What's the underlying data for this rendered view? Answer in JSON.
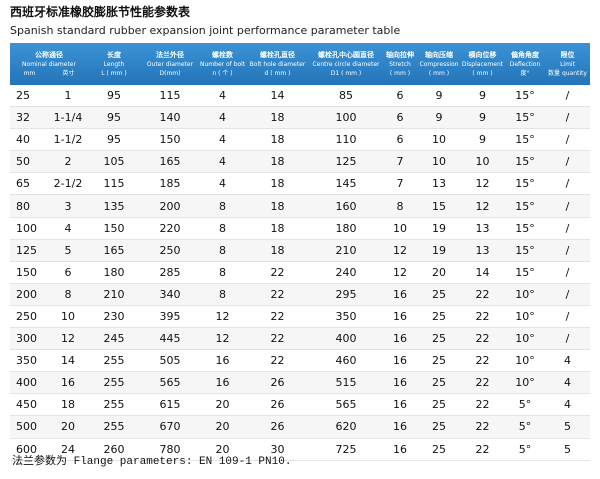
{
  "header": {
    "title": "西班牙标准橡胶膨胀节性能参数表",
    "subtitle": "Spanish standard rubber expansion joint performance parameter table"
  },
  "table": {
    "columns": [
      {
        "zh": "公称通径",
        "en": "Nominal diameter",
        "units": [
          "mm",
          "英寸"
        ]
      },
      {
        "zh": "长度",
        "en": "Length",
        "unit": "L ( mm )"
      },
      {
        "zh": "法兰外径",
        "en": "Outer diameter",
        "unit": "D(mm)"
      },
      {
        "zh": "螺栓数",
        "en": "Number of bolts",
        "unit": "n ( 个 )"
      },
      {
        "zh": "螺栓孔直径",
        "en": "Bolt hole diameter",
        "unit": "d ( mm )"
      },
      {
        "zh": "螺栓孔中心圆直径",
        "en": "Centre circle diameter",
        "unit": "D1 ( mm )"
      },
      {
        "zh": "轴向拉伸",
        "en": "Stretch",
        "unit": "( mm )"
      },
      {
        "zh": "轴向压缩",
        "en": "Compression",
        "unit": "( mm )"
      },
      {
        "zh": "横向位移",
        "en": "Displacement",
        "unit": "( mm )"
      },
      {
        "zh": "偏角角度",
        "en": "Deflection",
        "unit": "度°"
      },
      {
        "zh": "限位",
        "en": "Limit",
        "unit": "数量 quantity"
      }
    ],
    "rows": [
      [
        25,
        "1",
        95,
        115,
        4,
        14,
        85,
        6,
        9,
        9,
        "15°",
        "/"
      ],
      [
        32,
        "1-1/4",
        95,
        140,
        4,
        18,
        100,
        6,
        9,
        9,
        "15°",
        "/"
      ],
      [
        40,
        "1-1/2",
        95,
        150,
        4,
        18,
        110,
        6,
        10,
        9,
        "15°",
        "/"
      ],
      [
        50,
        "2",
        105,
        165,
        4,
        18,
        125,
        7,
        10,
        10,
        "15°",
        "/"
      ],
      [
        65,
        "2-1/2",
        115,
        185,
        4,
        18,
        145,
        7,
        13,
        12,
        "15°",
        "/"
      ],
      [
        80,
        "3",
        135,
        200,
        8,
        18,
        160,
        8,
        15,
        12,
        "15°",
        "/"
      ],
      [
        100,
        "4",
        150,
        220,
        8,
        18,
        180,
        10,
        19,
        13,
        "15°",
        "/"
      ],
      [
        125,
        "5",
        165,
        250,
        8,
        18,
        210,
        12,
        19,
        13,
        "15°",
        "/"
      ],
      [
        150,
        "6",
        180,
        285,
        8,
        22,
        240,
        12,
        20,
        14,
        "15°",
        "/"
      ],
      [
        200,
        "8",
        210,
        340,
        8,
        22,
        295,
        16,
        25,
        22,
        "10°",
        "/"
      ],
      [
        250,
        "10",
        230,
        395,
        12,
        22,
        350,
        16,
        25,
        22,
        "10°",
        "/"
      ],
      [
        300,
        "12",
        245,
        445,
        12,
        22,
        400,
        16,
        25,
        22,
        "10°",
        "/"
      ],
      [
        350,
        "14",
        255,
        505,
        16,
        22,
        460,
        16,
        25,
        22,
        "10°",
        "4"
      ],
      [
        400,
        "16",
        255,
        565,
        16,
        26,
        515,
        16,
        25,
        22,
        "10°",
        "4"
      ],
      [
        450,
        "18",
        255,
        615,
        20,
        26,
        565,
        16,
        25,
        22,
        "5°",
        "4"
      ],
      [
        500,
        "20",
        255,
        670,
        20,
        26,
        620,
        16,
        25,
        22,
        "5°",
        "5"
      ],
      [
        600,
        "24",
        260,
        780,
        20,
        30,
        725,
        16,
        25,
        22,
        "5°",
        "5"
      ]
    ]
  },
  "footer": {
    "note": "法兰参数为 Flange parameters: EN 109-1 PN10."
  }
}
